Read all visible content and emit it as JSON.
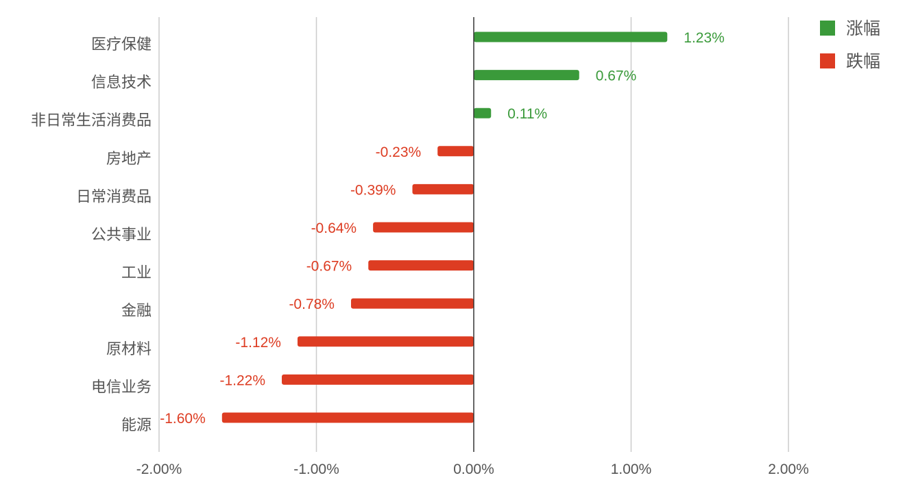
{
  "chart_data": {
    "type": "bar",
    "orientation": "horizontal",
    "categories": [
      "医疗保健",
      "信息技术",
      "非日常生活消费品",
      "房地产",
      "日常消费品",
      "公共事业",
      "工业",
      "金融",
      "原材料",
      "电信业务",
      "能源"
    ],
    "values": [
      1.23,
      0.67,
      0.11,
      -0.23,
      -0.39,
      -0.64,
      -0.67,
      -0.78,
      -1.12,
      -1.22,
      -1.6
    ],
    "value_labels": [
      "1.23%",
      "0.67%",
      "0.11%",
      "-0.23%",
      "-0.39%",
      "-0.64%",
      "-0.67%",
      "-0.78%",
      "-1.12%",
      "-1.22%",
      "-1.60%"
    ],
    "xlim": [
      -2,
      2
    ],
    "x_ticks": [
      -2,
      -1,
      0,
      1,
      2
    ],
    "x_tick_labels": [
      "-2.00%",
      "-1.00%",
      "0.00%",
      "1.00%",
      "2.00%"
    ],
    "grid": true,
    "legend_position": "top-right",
    "legend": [
      {
        "name": "涨幅",
        "color": "#3a9a3a"
      },
      {
        "name": "跌幅",
        "color": "#dd3c22"
      }
    ],
    "colors": {
      "positive": "#3a9a3a",
      "negative": "#dd3c22"
    }
  }
}
